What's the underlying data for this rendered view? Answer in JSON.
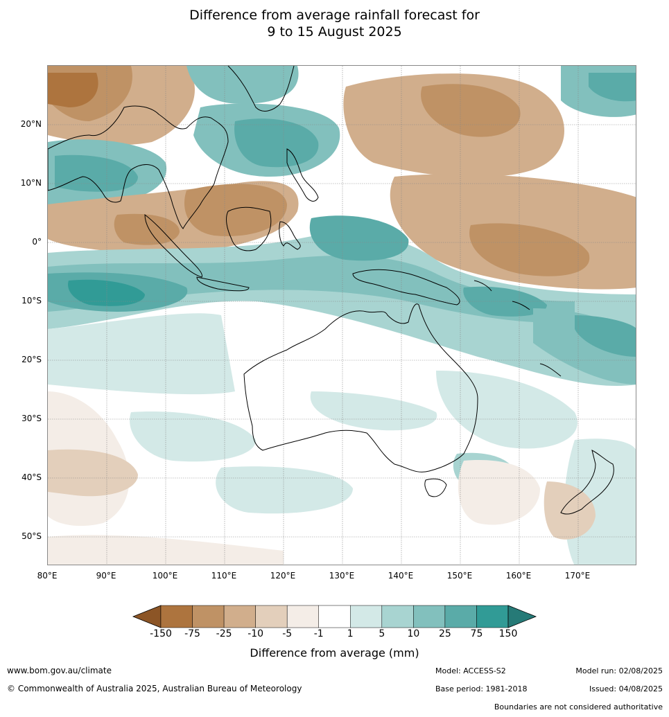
{
  "title": {
    "line1": "Difference from average rainfall forecast for",
    "line2": "9 to 15 August 2025"
  },
  "map": {
    "lat_labels": [
      "20°N",
      "10°N",
      "0°",
      "10°S",
      "20°S",
      "30°S",
      "40°S",
      "50°S"
    ],
    "lon_labels": [
      "80°E",
      "90°E",
      "100°E",
      "110°E",
      "120°E",
      "130°E",
      "140°E",
      "150°E",
      "160°E",
      "170°E"
    ],
    "lon_range": [
      80,
      180
    ],
    "lat_range": [
      -55,
      30
    ]
  },
  "legend": {
    "title": "Difference from average (mm)",
    "ticks": [
      "-150",
      "-75",
      "-25",
      "-10",
      "-5",
      "-1",
      "1",
      "5",
      "10",
      "25",
      "75",
      "150"
    ],
    "colors": [
      "#8c5526",
      "#ad743e",
      "#bf9265",
      "#d1ae8c",
      "#e3cfbb",
      "#f4ede7",
      "#ffffff",
      "#d3e9e7",
      "#a8d4d1",
      "#82c0bd",
      "#5aaba8",
      "#319b96",
      "#267a77"
    ]
  },
  "footer": {
    "website": "www.bom.gov.au/climate",
    "copyright": "© Commonwealth of Australia 2025, Australian Bureau of Meteorology",
    "model": "Model: ACCESS-S2",
    "base_period": "Base period: 1981-2018",
    "model_run": "Model run: 02/08/2025",
    "issued": "Issued: 04/08/2025",
    "disclaimer": "Boundaries are not considered authoritative"
  }
}
